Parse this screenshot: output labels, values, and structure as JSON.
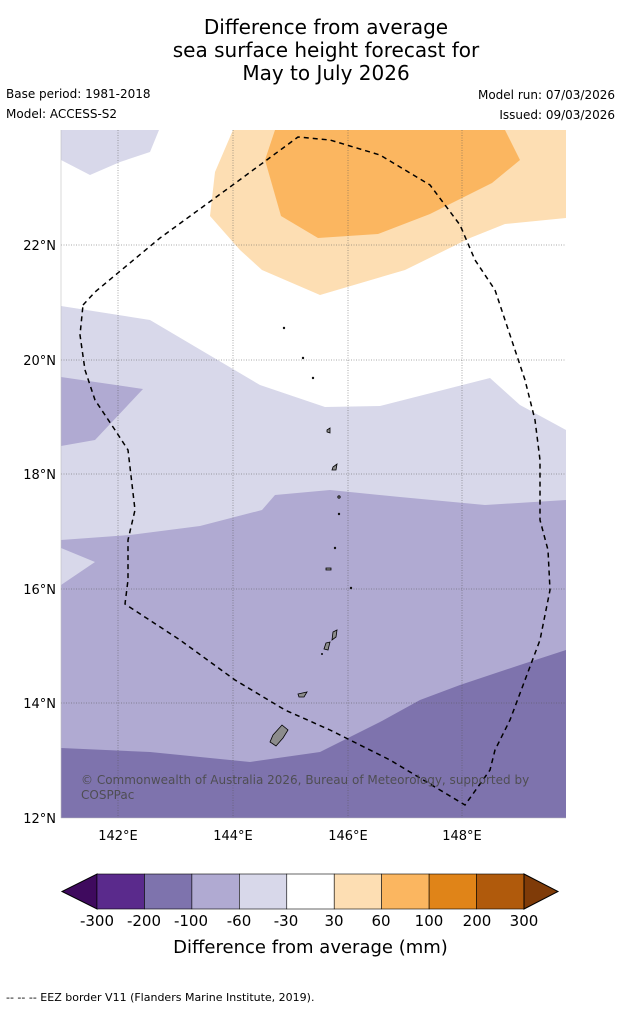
{
  "title": {
    "line1": "Difference from average",
    "line2": "sea surface height forecast for",
    "line3": "May to July 2026"
  },
  "meta": {
    "base_period": "Base period: 1981-2018",
    "model": "Model: ACCESS-S2",
    "model_run": "Model run: 07/03/2026",
    "issued": "Issued: 09/03/2026"
  },
  "map": {
    "region": "Northern Mariana Islands and Guam",
    "lon_range": [
      141.0,
      149.8
    ],
    "lat_range": [
      12.0,
      24.0
    ],
    "lat_labels": [
      "12°N",
      "14°N",
      "16°N",
      "18°N",
      "20°N",
      "22°N"
    ],
    "lon_labels": [
      "142°E",
      "144°E",
      "146°E",
      "148°E"
    ],
    "attribution": "© Commonwealth of Australia 2026, Bureau of Meteorology, supported by COSPPac",
    "colors": {
      "lt_purple": "#d8d8ea",
      "mid_purple": "#b0aad2",
      "dk_purple": "#7e73ad",
      "lt_orange": "#fddeb3",
      "mid_orange": "#fbb660",
      "land": "#8c8c8c"
    }
  },
  "colorbar": {
    "labels": [
      "-300",
      "-200",
      "-100",
      "-60",
      "-30",
      "30",
      "60",
      "100",
      "200",
      "300"
    ],
    "colors": [
      "#3f0a5e",
      "#5a2a8c",
      "#7e73ad",
      "#b0aad2",
      "#d8d8ea",
      "#ffffff",
      "#fddeb3",
      "#fbb660",
      "#e08418",
      "#b05a0c",
      "#7f3b08"
    ],
    "title": "Difference from average (mm)"
  },
  "footer": "--  --  -- EEZ border V11 (Flanders Marine Institute, 2019)."
}
